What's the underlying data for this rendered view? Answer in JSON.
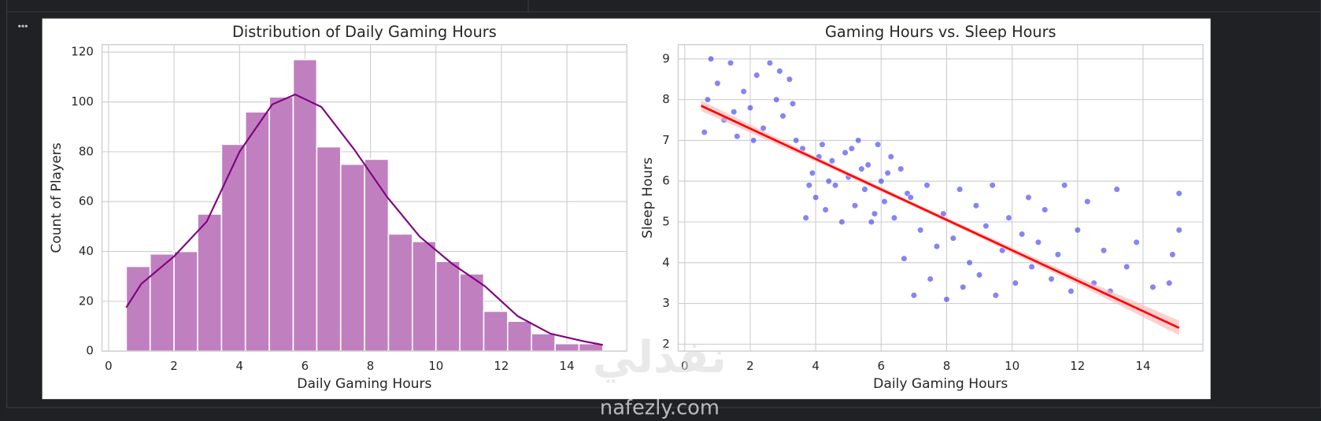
{
  "chart_data": [
    {
      "type": "histogram",
      "title": "Distribution of Daily Gaming Hours",
      "xlabel": "Daily Gaming Hours",
      "ylabel": "Count of Players",
      "bins": [
        0.54,
        1.27,
        2.0,
        2.72,
        3.45,
        4.18,
        4.91,
        5.64,
        6.36,
        7.09,
        7.82,
        8.55,
        9.28,
        10.0,
        10.73,
        11.46,
        12.19,
        12.92,
        13.64,
        14.37,
        15.1
      ],
      "counts": [
        34,
        39,
        40,
        55,
        83,
        96,
        102,
        117,
        82,
        75,
        77,
        47,
        44,
        36,
        31,
        16,
        12,
        7,
        3,
        3
      ],
      "color": "#c080c0",
      "kde": {
        "color": "#800080",
        "x": [
          0.54,
          1,
          2,
          3,
          4,
          5,
          5.7,
          6.5,
          7.5,
          8.5,
          9.5,
          10.5,
          11.5,
          12.5,
          13.5,
          14.5,
          15.1
        ],
        "values": [
          17.5,
          27,
          38,
          52,
          80,
          99,
          103,
          98,
          81,
          62,
          46,
          35,
          26,
          14,
          7,
          4,
          2.5
        ]
      },
      "xlim": [
        -0.2,
        15.83
      ],
      "ylim": [
        0,
        123
      ],
      "xticks": [
        0,
        2,
        4,
        6,
        8,
        10,
        12,
        14
      ],
      "yticks": [
        0,
        20,
        40,
        60,
        80,
        100,
        120
      ],
      "grid": true
    },
    {
      "type": "scatter",
      "title": "Gaming Hours vs. Sleep Hours",
      "xlabel": "Daily Gaming Hours",
      "ylabel": "Sleep Hours",
      "color": "#3333ee",
      "x": [
        0.6,
        0.8,
        1.0,
        1.2,
        1.4,
        1.6,
        1.8,
        2.0,
        2.2,
        2.4,
        2.6,
        2.8,
        3.0,
        3.2,
        3.4,
        0.7,
        1.5,
        2.1,
        2.9,
        3.3,
        3.6,
        3.7,
        3.9,
        4.0,
        4.2,
        4.3,
        4.5,
        4.6,
        4.8,
        4.9,
        5.0,
        5.2,
        5.3,
        5.5,
        5.6,
        5.8,
        5.9,
        6.0,
        6.1,
        6.3,
        6.4,
        6.6,
        6.8,
        3.8,
        4.4,
        5.1,
        5.7,
        6.2,
        4.1,
        5.4,
        6.7,
        6.9,
        7.0,
        7.2,
        7.4,
        7.5,
        7.7,
        7.9,
        8.0,
        8.2,
        8.4,
        8.5,
        8.7,
        8.9,
        9.0,
        9.2,
        9.4,
        9.5,
        9.7,
        9.9,
        10.1,
        10.3,
        10.5,
        10.6,
        10.8,
        11.0,
        11.2,
        11.4,
        11.6,
        11.8,
        12.0,
        12.3,
        12.5,
        12.8,
        13.2,
        13.5,
        13.8,
        14.3,
        14.9,
        15.1,
        15.1,
        14.8,
        13.0
      ],
      "values": [
        7.2,
        9.0,
        8.4,
        7.5,
        8.9,
        7.1,
        8.2,
        7.8,
        8.6,
        7.3,
        8.9,
        8.0,
        7.6,
        8.5,
        7.0,
        8.0,
        7.7,
        7.0,
        8.7,
        7.9,
        6.8,
        5.1,
        6.2,
        5.6,
        6.9,
        5.3,
        6.5,
        5.9,
        5.0,
        6.7,
        6.1,
        5.4,
        7.0,
        5.8,
        6.4,
        5.2,
        6.9,
        6.0,
        5.5,
        6.6,
        5.1,
        6.3,
        5.7,
        5.9,
        6.0,
        6.8,
        5.0,
        6.2,
        6.6,
        6.3,
        4.1,
        5.6,
        3.2,
        4.8,
        5.9,
        3.6,
        4.4,
        5.2,
        3.1,
        4.6,
        5.8,
        3.4,
        4.0,
        5.4,
        3.7,
        4.9,
        5.9,
        3.2,
        4.3,
        5.1,
        3.5,
        4.7,
        5.6,
        3.9,
        4.5,
        5.3,
        3.6,
        4.2,
        5.9,
        3.3,
        4.8,
        5.5,
        3.5,
        4.3,
        5.8,
        3.9,
        4.5,
        3.4,
        4.2,
        5.7,
        4.8,
        3.5,
        3.3
      ],
      "regression": {
        "color": "#ff0000",
        "x": [
          0.5,
          15.1
        ],
        "values": [
          7.85,
          2.4
        ]
      },
      "band": {
        "color": "#ffb3b3",
        "x": [
          0.5,
          4,
          8,
          12,
          15.1
        ],
        "lower": [
          7.72,
          6.48,
          5.0,
          3.47,
          2.22
        ],
        "upper": [
          7.98,
          6.6,
          5.1,
          3.65,
          2.58
        ]
      },
      "xlim": [
        -0.2,
        15.83
      ],
      "ylim": [
        1.83,
        9.35
      ],
      "xticks": [
        0,
        2,
        4,
        6,
        8,
        10,
        12,
        14
      ],
      "yticks": [
        2,
        3,
        4,
        5,
        6,
        7,
        8,
        9
      ],
      "grid": true
    }
  ],
  "watermark": {
    "arabic": "نفذلي",
    "latin": "nafezly.com"
  }
}
